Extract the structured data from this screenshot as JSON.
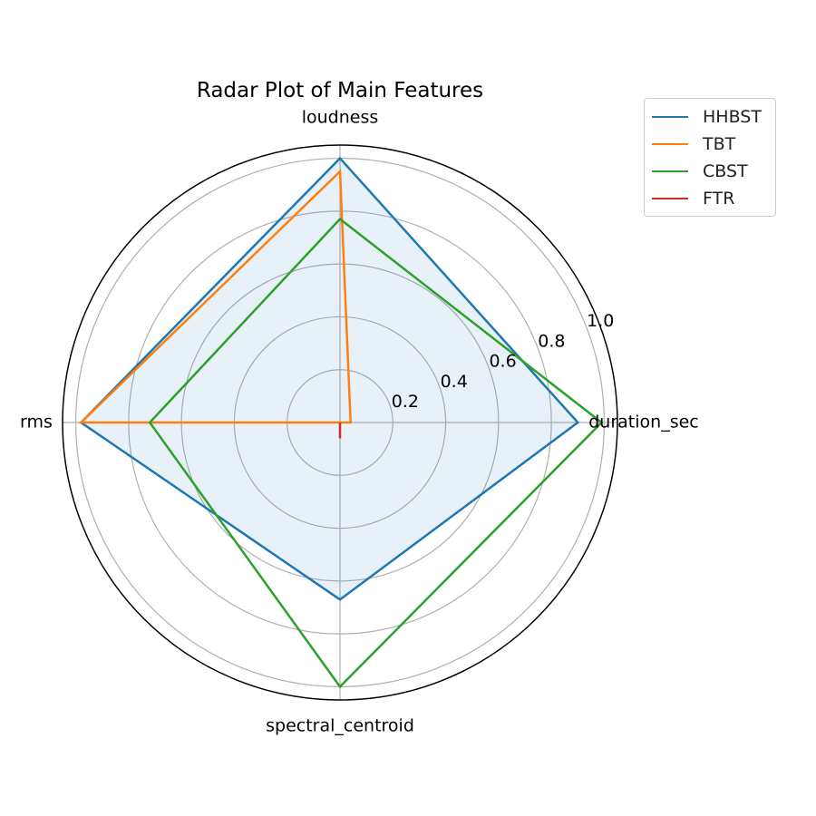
{
  "chart_data": {
    "type": "radar",
    "title": "Radar Plot of Main Features",
    "axes": [
      "duration_sec",
      "loudness",
      "rms",
      "spectral_centroid"
    ],
    "radial_ticks": [
      0.2,
      0.4,
      0.6,
      0.8,
      1.0
    ],
    "radial_tick_labels": [
      "0.2",
      "0.4",
      "0.6",
      "0.8",
      "1.0"
    ],
    "rlim": [
      0,
      1.05
    ],
    "grid": true,
    "legend_position": "upper-right",
    "series": [
      {
        "name": "HHBST",
        "color": "#1f77b4",
        "values": [
          0.9,
          1.0,
          0.98,
          0.67
        ],
        "filled": true
      },
      {
        "name": "TBT",
        "color": "#ff7f0e",
        "values": [
          0.04,
          0.95,
          0.98,
          0.0
        ],
        "filled": false
      },
      {
        "name": "CBST",
        "color": "#2ca02c",
        "values": [
          0.99,
          0.77,
          0.72,
          1.0
        ],
        "filled": false
      },
      {
        "name": "FTR",
        "color": "#d62728",
        "values": [
          0.0,
          0.0,
          0.0,
          0.06
        ],
        "filled": false
      }
    ]
  }
}
